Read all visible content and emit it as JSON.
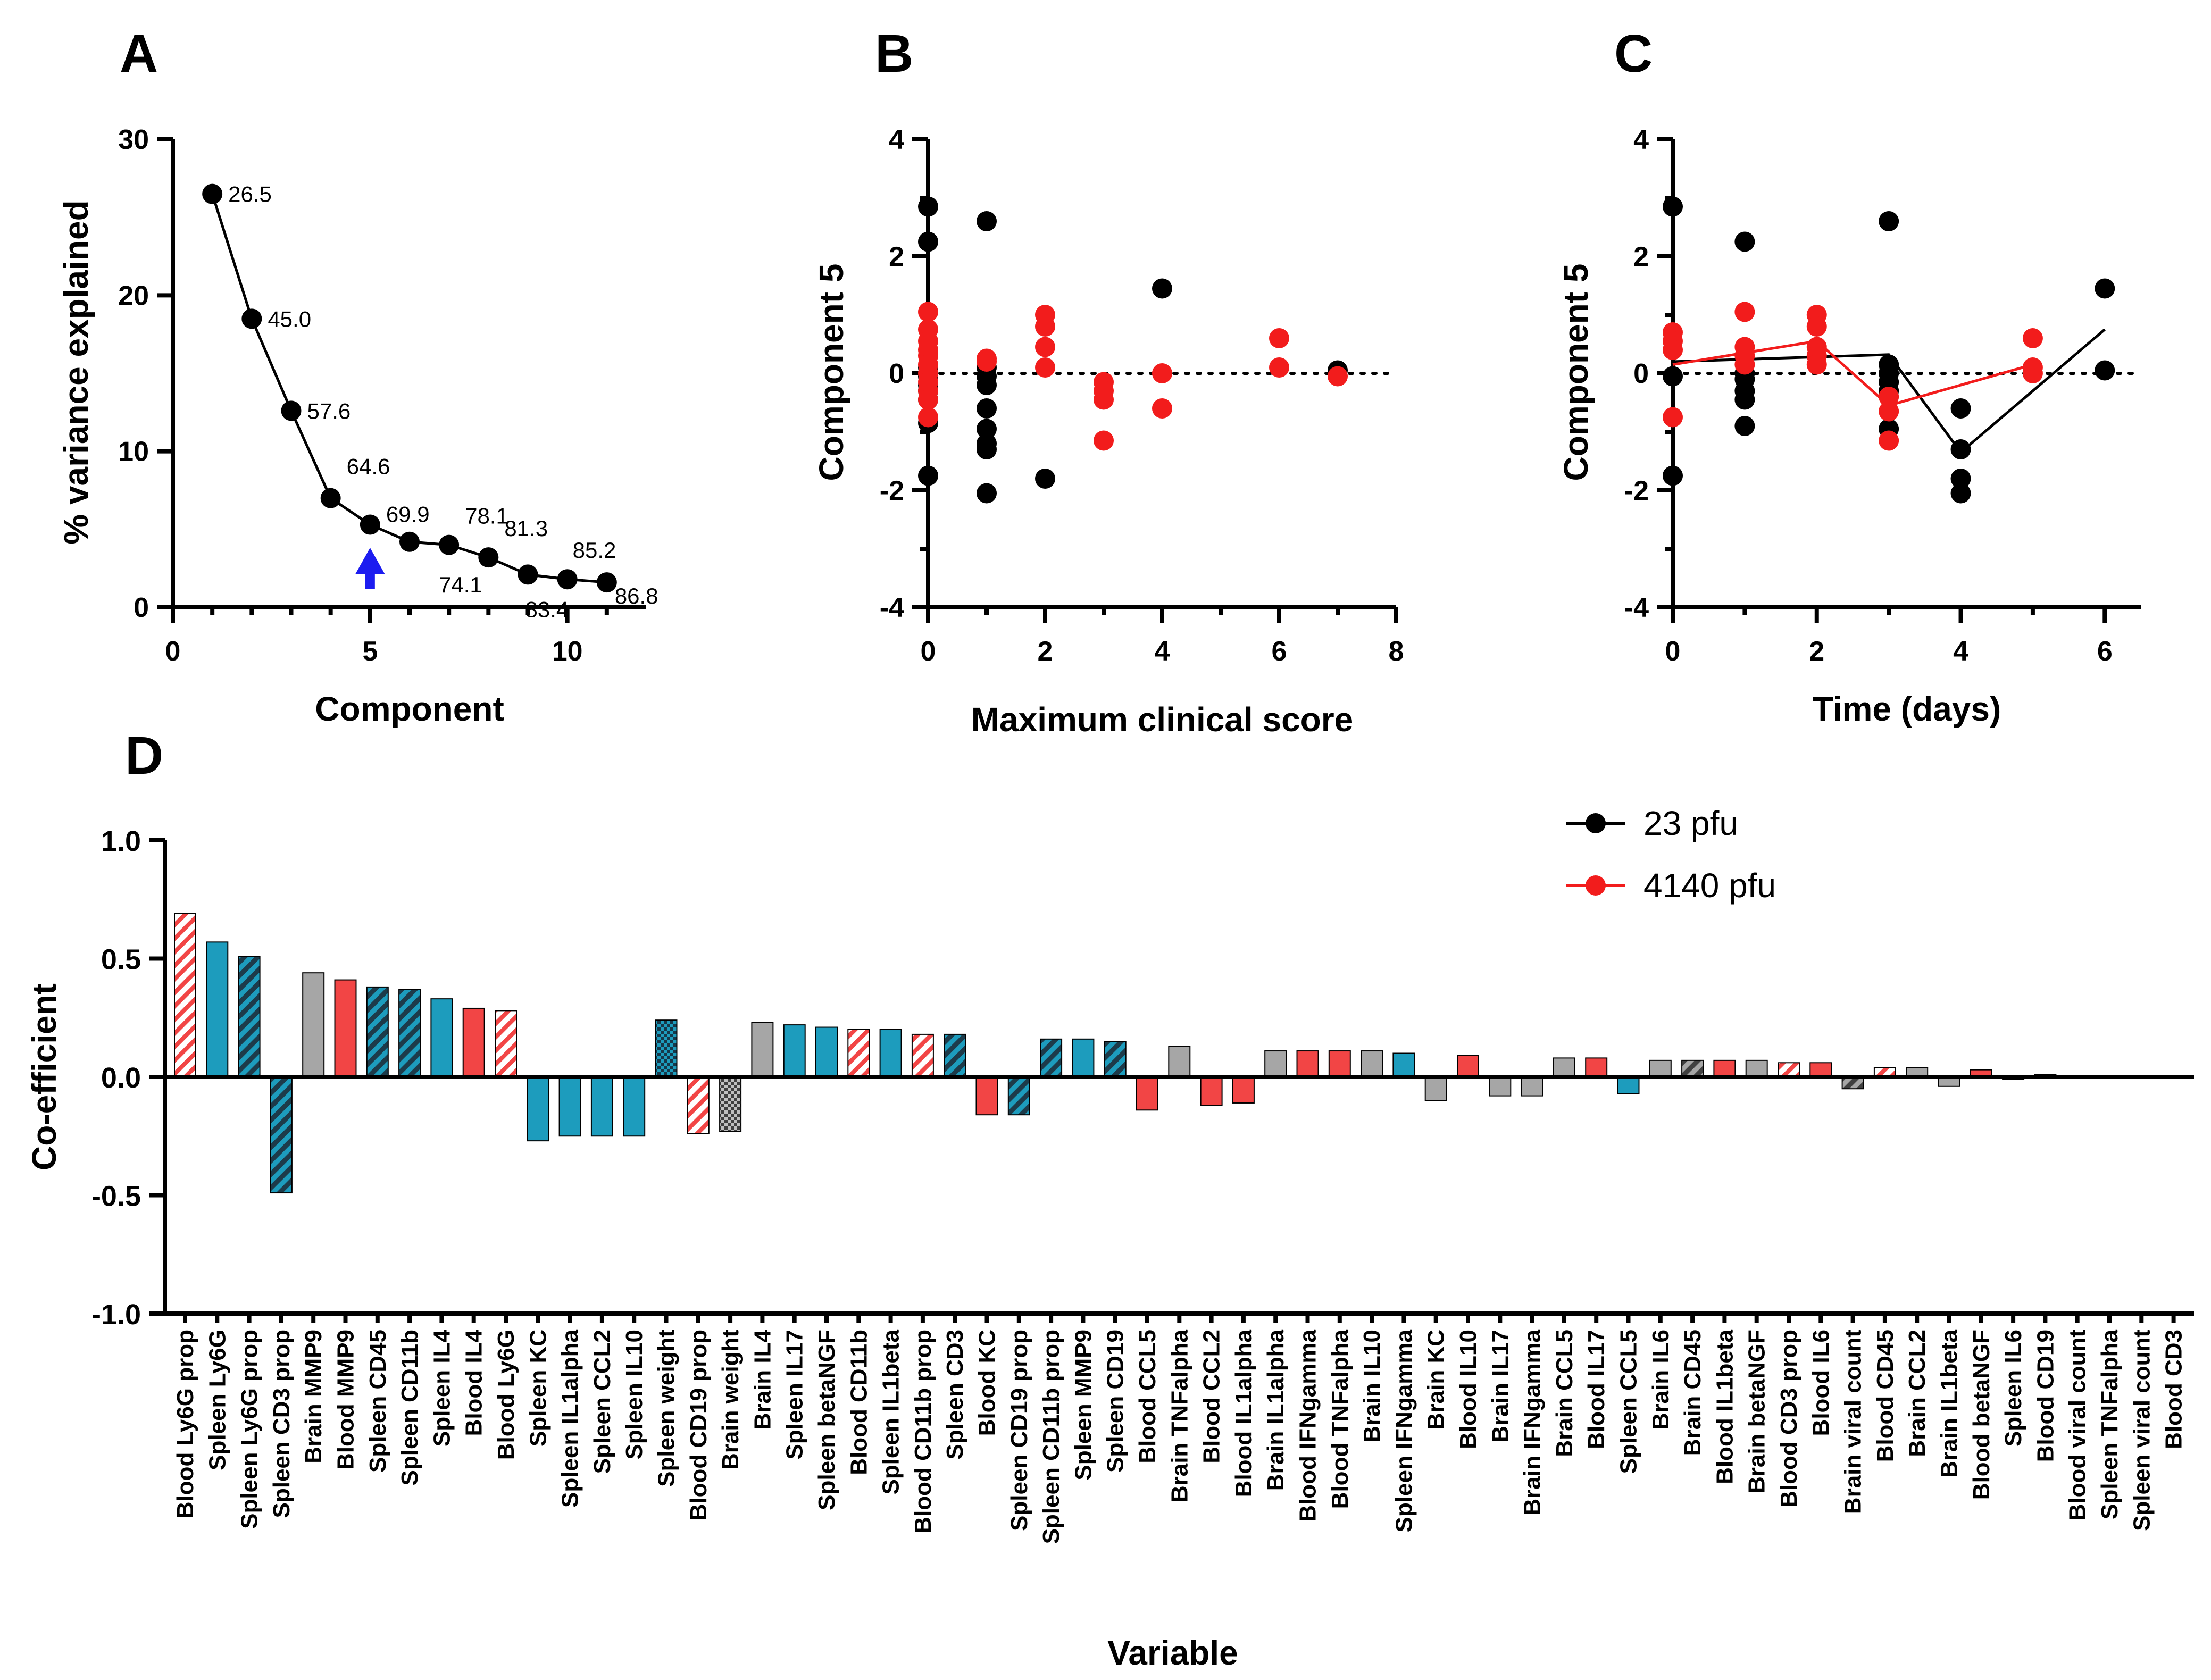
{
  "colors": {
    "black": "#000000",
    "red": "#f21c1c",
    "teal": "#1d9cbd",
    "grey": "#a6a6a6",
    "blue_arrow": "#1c1cf0",
    "bar_red": "#f24545"
  },
  "legend": {
    "items": [
      {
        "label": "23 pfu",
        "color": "#000000"
      },
      {
        "label": "4140 pfu",
        "color": "#f21c1c"
      }
    ]
  },
  "chart_data": [
    {
      "panel": "A",
      "type": "line",
      "xlabel": "Component",
      "ylabel": "% variance explained",
      "xlim": [
        0,
        12
      ],
      "ylim": [
        0,
        30
      ],
      "xticks": [
        "0",
        "5",
        "10"
      ],
      "yticks": [
        "0",
        "10",
        "20",
        "30"
      ],
      "x": [
        1,
        2,
        3,
        4,
        5,
        6,
        7,
        8,
        9,
        10,
        11
      ],
      "y": [
        26.5,
        18.5,
        12.6,
        7.0,
        5.3,
        4.2,
        4.0,
        3.2,
        2.1,
        1.8,
        1.6
      ],
      "cumulative_labels": [
        "26.5",
        "45.0",
        "57.6",
        "64.6",
        "69.9",
        "74.1",
        "78.1",
        "81.3",
        "83.4",
        "85.2",
        "86.8"
      ],
      "arrow_at": 5
    },
    {
      "panel": "B",
      "type": "scatter",
      "xlabel": "Maximum clinical score",
      "ylabel": "Component 5",
      "xlim": [
        0,
        8
      ],
      "ylim": [
        -4,
        4
      ],
      "xticks": [
        "0",
        "2",
        "4",
        "6",
        "8"
      ],
      "yticks": [
        "-4",
        "-2",
        "0",
        "2",
        "4"
      ],
      "series": [
        {
          "name": "23 pfu",
          "points": [
            [
              0,
              2.85
            ],
            [
              0,
              2.25
            ],
            [
              0,
              0.1
            ],
            [
              0,
              -0.05
            ],
            [
              0,
              -0.2
            ],
            [
              0,
              -0.3
            ],
            [
              0,
              -0.45
            ],
            [
              0,
              -0.85
            ],
            [
              0,
              -1.75
            ],
            [
              1,
              2.6
            ],
            [
              1,
              0.1
            ],
            [
              1,
              -0.05
            ],
            [
              1,
              -0.2
            ],
            [
              1,
              -0.6
            ],
            [
              1,
              -0.95
            ],
            [
              1,
              -1.2
            ],
            [
              1,
              -1.3
            ],
            [
              1,
              -2.05
            ],
            [
              2,
              -1.8
            ],
            [
              4,
              1.45
            ],
            [
              7,
              0.05
            ]
          ]
        },
        {
          "name": "4140 pfu",
          "points": [
            [
              0,
              1.05
            ],
            [
              0,
              0.75
            ],
            [
              0,
              0.55
            ],
            [
              0,
              0.4
            ],
            [
              0,
              0.3
            ],
            [
              0,
              0.15
            ],
            [
              0,
              0.0
            ],
            [
              0,
              -0.15
            ],
            [
              0,
              -0.3
            ],
            [
              0,
              -0.45
            ],
            [
              0,
              -0.75
            ],
            [
              1,
              0.25
            ],
            [
              1,
              0.2
            ],
            [
              2,
              1.0
            ],
            [
              2,
              0.8
            ],
            [
              2,
              0.45
            ],
            [
              2,
              0.1
            ],
            [
              3,
              -0.15
            ],
            [
              3,
              -0.3
            ],
            [
              3,
              -0.45
            ],
            [
              3,
              -1.15
            ],
            [
              4,
              0.0
            ],
            [
              4,
              -0.6
            ],
            [
              6,
              0.6
            ],
            [
              6,
              0.1
            ],
            [
              7,
              -0.05
            ]
          ]
        }
      ]
    },
    {
      "panel": "C",
      "type": "scatter",
      "xlabel": "Time (days)",
      "ylabel": "Component 5",
      "xlim": [
        0,
        6.5
      ],
      "ylim": [
        -4,
        4
      ],
      "xticks": [
        "0",
        "2",
        "4",
        "6"
      ],
      "yticks": [
        "-4",
        "-2",
        "0",
        "2",
        "4"
      ],
      "series": [
        {
          "name": "23 pfu",
          "points": [
            [
              0,
              2.85
            ],
            [
              0,
              -0.05
            ],
            [
              0,
              -1.75
            ],
            [
              1,
              2.25
            ],
            [
              1,
              0.0
            ],
            [
              1,
              -0.1
            ],
            [
              1,
              -0.3
            ],
            [
              1,
              -0.45
            ],
            [
              1,
              -0.9
            ],
            [
              3,
              2.6
            ],
            [
              3,
              0.15
            ],
            [
              3,
              0.0
            ],
            [
              3,
              -0.15
            ],
            [
              3,
              -0.3
            ],
            [
              3,
              -0.95
            ],
            [
              4,
              -0.6
            ],
            [
              4,
              -1.3
            ],
            [
              4,
              -1.8
            ],
            [
              4,
              -2.05
            ],
            [
              6,
              1.45
            ],
            [
              6,
              0.05
            ]
          ],
          "mean_line": [
            [
              0,
              0.2
            ],
            [
              3,
              0.32
            ],
            [
              4,
              -1.35
            ],
            [
              6,
              0.75
            ]
          ]
        },
        {
          "name": "4140 pfu",
          "points": [
            [
              0,
              0.7
            ],
            [
              0,
              0.55
            ],
            [
              0,
              0.4
            ],
            [
              0,
              -0.75
            ],
            [
              1,
              1.05
            ],
            [
              1,
              0.45
            ],
            [
              1,
              0.3
            ],
            [
              1,
              0.15
            ],
            [
              2,
              1.0
            ],
            [
              2,
              0.8
            ],
            [
              2,
              0.45
            ],
            [
              2,
              0.3
            ],
            [
              2,
              0.15
            ],
            [
              3,
              -0.4
            ],
            [
              3,
              -0.65
            ],
            [
              3,
              -1.15
            ],
            [
              5,
              0.6
            ],
            [
              5,
              0.1
            ],
            [
              5,
              0.0
            ]
          ],
          "mean_line": [
            [
              0,
              0.15
            ],
            [
              1,
              0.35
            ],
            [
              2,
              0.55
            ],
            [
              3,
              -0.55
            ],
            [
              5,
              0.15
            ]
          ]
        }
      ]
    },
    {
      "panel": "D",
      "type": "bar",
      "xlabel": "Variable",
      "ylabel": "Co-efficient",
      "ylim": [
        -1.0,
        1.0
      ],
      "yticks": [
        "-1.0",
        "-0.5",
        "0.0",
        "0.5",
        "1.0"
      ],
      "categories": [
        "Blood Ly6G prop",
        "Spleen Ly6G",
        "Spleen Ly6G prop",
        "Spleen CD3 prop",
        "Brain MMP9",
        "Blood MMP9",
        "Spleen CD45",
        "Spleen CD11b",
        "Spleen IL4",
        "Blood IL4",
        "Blood Ly6G",
        "Spleen KC",
        "Spleen IL1alpha",
        "Spleen CCL2",
        "Spleen IL10",
        "Spleen weight",
        "Blood CD19 prop",
        "Brain weight",
        "Brain IL4",
        "Spleen IL17",
        "Spleen betaNGF",
        "Blood CD11b",
        "Spleen IL1beta",
        "Blood CD11b prop",
        "Spleen CD3",
        "Blood KC",
        "Spleen CD19 prop",
        "Spleen CD11b prop",
        "Spleen MMP9",
        "Spleen CD19",
        "Blood CCL5",
        "Brain TNFalpha",
        "Blood CCL2",
        "Blood IL1alpha",
        "Brain IL1alpha",
        "Blood IFNgamma",
        "Blood TNFalpha",
        "Brain IL10",
        "Spleen IFNgamma",
        "Brain KC",
        "Blood IL10",
        "Brain IL17",
        "Brain IFNgamma",
        "Brain CCL5",
        "Blood IL17",
        "Spleen CCL5",
        "Brain IL6",
        "Brain CD45",
        "Blood IL1beta",
        "Brain betaNGF",
        "Blood CD3 prop",
        "Blood IL6",
        "Brain viral count",
        "Blood CD45",
        "Brain CCL2",
        "Brain IL1beta",
        "Blood betaNGF",
        "Spleen IL6",
        "Blood CD19",
        "Blood viral count",
        "Spleen TNFalpha",
        "Spleen viral count",
        "Blood CD3"
      ],
      "values": [
        0.69,
        0.57,
        0.51,
        -0.49,
        0.44,
        0.41,
        0.38,
        0.37,
        0.33,
        0.29,
        0.28,
        -0.27,
        -0.25,
        -0.25,
        -0.25,
        0.24,
        -0.24,
        -0.23,
        0.23,
        0.22,
        0.21,
        0.2,
        0.2,
        0.18,
        0.18,
        -0.16,
        -0.16,
        0.16,
        0.16,
        0.15,
        -0.14,
        0.13,
        -0.12,
        -0.11,
        0.11,
        0.11,
        0.11,
        0.11,
        0.1,
        -0.1,
        0.09,
        -0.08,
        -0.08,
        0.08,
        0.08,
        -0.07,
        0.07,
        0.07,
        0.07,
        0.07,
        0.06,
        0.06,
        -0.05,
        0.04,
        0.04,
        -0.04,
        0.03,
        -0.01,
        0.01,
        0.0,
        0.0,
        0.0,
        0.0
      ],
      "fills": [
        "red-hatch",
        "teal",
        "teal-hatch",
        "teal-hatch",
        "grey",
        "red",
        "teal-hatch",
        "teal-hatch",
        "teal",
        "red",
        "red-hatch",
        "teal",
        "teal",
        "teal",
        "teal",
        "teal-check",
        "red-hatch",
        "grey-check",
        "grey",
        "teal",
        "teal",
        "red-hatch",
        "teal",
        "red-hatch",
        "teal-hatch",
        "red",
        "teal-hatch",
        "teal-hatch",
        "teal",
        "teal-hatch",
        "red",
        "grey",
        "red",
        "red",
        "grey",
        "red",
        "red",
        "grey",
        "teal",
        "grey",
        "red",
        "grey",
        "grey",
        "grey",
        "red",
        "teal",
        "grey",
        "grey-hatch",
        "red",
        "grey",
        "red-hatch",
        "red",
        "grey-hatch",
        "red-hatch",
        "grey",
        "grey",
        "red",
        "teal",
        "grey",
        "red",
        "teal",
        "teal",
        "teal"
      ]
    }
  ]
}
